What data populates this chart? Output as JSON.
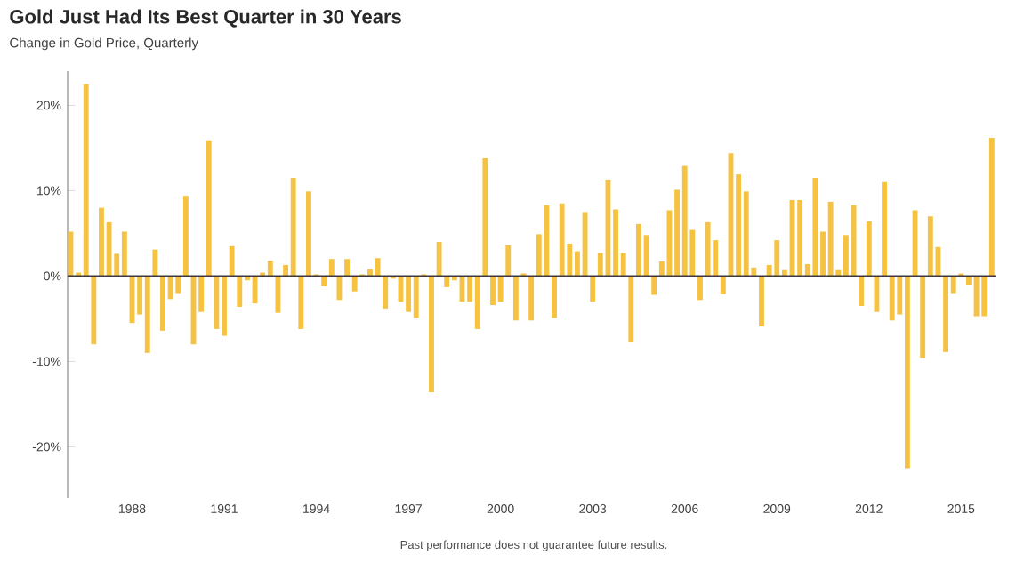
{
  "chart_data": {
    "type": "bar",
    "title": "Gold Just Had Its Best Quarter in 30 Years",
    "subtitle": "Change in Gold Price, Quarterly",
    "annotations": [
      "Past performance does not guarantee future results."
    ],
    "x": [
      1986,
      1986.25,
      1986.5,
      1986.75,
      1987,
      1987.25,
      1987.5,
      1987.75,
      1988,
      1988.25,
      1988.5,
      1988.75,
      1989,
      1989.25,
      1989.5,
      1989.75,
      1990,
      1990.25,
      1990.5,
      1990.75,
      1991,
      1991.25,
      1991.5,
      1991.75,
      1992,
      1992.25,
      1992.5,
      1992.75,
      1993,
      1993.25,
      1993.5,
      1993.75,
      1994,
      1994.25,
      1994.5,
      1994.75,
      1995,
      1995.25,
      1995.5,
      1995.75,
      1996,
      1996.25,
      1996.5,
      1996.75,
      1997,
      1997.25,
      1997.5,
      1997.75,
      1998,
      1998.25,
      1998.5,
      1998.75,
      1999,
      1999.25,
      1999.5,
      1999.75,
      2000,
      2000.25,
      2000.5,
      2000.75,
      2001,
      2001.25,
      2001.5,
      2001.75,
      2002,
      2002.25,
      2002.5,
      2002.75,
      2003,
      2003.25,
      2003.5,
      2003.75,
      2004,
      2004.25,
      2004.5,
      2004.75,
      2005,
      2005.25,
      2005.5,
      2005.75,
      2006,
      2006.25,
      2006.5,
      2006.75,
      2007,
      2007.25,
      2007.5,
      2007.75,
      2008,
      2008.25,
      2008.5,
      2008.75,
      2009,
      2009.25,
      2009.5,
      2009.75,
      2010,
      2010.25,
      2010.5,
      2010.75,
      2011,
      2011.25,
      2011.5,
      2011.75,
      2012,
      2012.25,
      2012.5,
      2012.75,
      2013,
      2013.25,
      2013.5,
      2013.75,
      2014,
      2014.25,
      2014.5,
      2014.75,
      2015,
      2015.25,
      2015.5,
      2015.75,
      2016
    ],
    "values": [
      5.2,
      0.4,
      22.5,
      -8.0,
      8.0,
      6.3,
      2.6,
      5.2,
      -5.5,
      -4.5,
      -9.0,
      3.1,
      -6.4,
      -2.7,
      -2.0,
      9.4,
      -8.0,
      -4.2,
      15.9,
      -6.2,
      -7.0,
      3.5,
      -3.6,
      -0.5,
      -3.2,
      0.4,
      1.8,
      -4.3,
      1.3,
      11.5,
      -6.2,
      9.9,
      0.2,
      -1.2,
      2.0,
      -2.8,
      2.0,
      -1.8,
      0.2,
      0.8,
      2.1,
      -3.8,
      -0.3,
      -3.0,
      -4.2,
      -4.9,
      0.2,
      -13.6,
      4.0,
      -1.3,
      -0.5,
      -3.0,
      -3.0,
      -6.2,
      13.8,
      -3.4,
      -3.0,
      3.6,
      -5.2,
      0.3,
      -5.2,
      4.9,
      8.3,
      -4.9,
      8.5,
      3.8,
      2.9,
      7.5,
      -3.0,
      2.7,
      11.3,
      7.8,
      2.7,
      -7.7,
      6.1,
      4.8,
      -2.2,
      1.7,
      7.7,
      10.1,
      12.9,
      5.4,
      -2.8,
      6.3,
      4.2,
      -2.1,
      14.4,
      11.9,
      9.9,
      1.0,
      -5.9,
      1.3,
      4.2,
      0.7,
      8.9,
      8.9,
      1.4,
      11.5,
      5.2,
      8.7,
      0.7,
      4.8,
      8.3,
      -3.5,
      6.4,
      -4.2,
      11.0,
      -5.2,
      -4.5,
      -22.5,
      7.7,
      -9.6,
      7.0,
      3.4,
      -8.9,
      -2.0,
      0.3,
      -1.0,
      -4.7,
      -4.7,
      16.2
    ],
    "color": "#f5c242",
    "xlim": [
      1985.9,
      2016.15
    ],
    "xticks": [
      1988,
      1991,
      1994,
      1997,
      2000,
      2003,
      2006,
      2009,
      2012,
      2015
    ],
    "ylim": [
      -26,
      24
    ],
    "yticks": [
      {
        "value": -20,
        "label": "-20%"
      },
      {
        "value": -10,
        "label": "-10%"
      },
      {
        "value": 0,
        "label": "0%"
      },
      {
        "value": 10,
        "label": "10%"
      },
      {
        "value": 20,
        "label": "20%"
      }
    ],
    "ref_lines": [
      {
        "axis": "y",
        "value": 0,
        "color": "#3a3a3a"
      }
    ]
  }
}
